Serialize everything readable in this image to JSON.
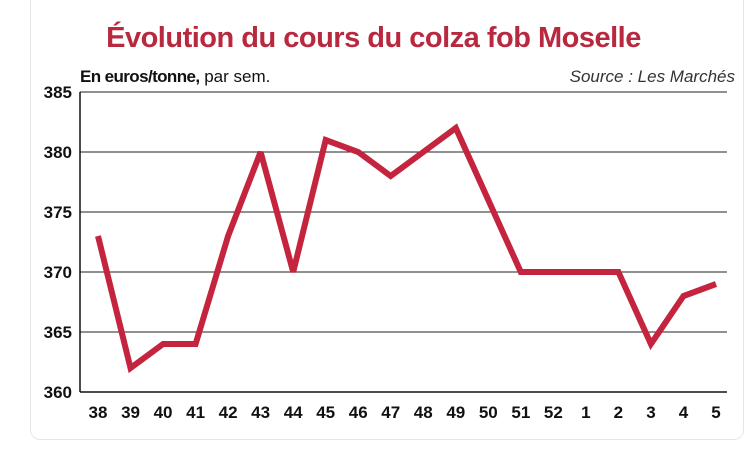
{
  "chart_data": {
    "type": "line",
    "title": "Évolution du cours du colza fob Moselle",
    "ylabel_bold": "En euros/tonne,",
    "ylabel_rest": " par sem.",
    "source": "Source : Les Marchés",
    "categories": [
      "38",
      "39",
      "40",
      "41",
      "42",
      "43",
      "44",
      "45",
      "46",
      "47",
      "48",
      "49",
      "50",
      "51",
      "52",
      "1",
      "2",
      "3",
      "4",
      "5"
    ],
    "series": [
      {
        "name": "",
        "values": [
          373,
          362,
          364,
          364,
          373,
          380,
          370,
          381,
          380,
          378,
          380,
          382,
          376,
          370,
          370,
          370,
          370,
          364,
          368,
          369
        ]
      }
    ],
    "yticks": [
      360,
      365,
      370,
      375,
      380,
      385
    ],
    "ylim": [
      360,
      385
    ],
    "grid": true,
    "line_color": "#c4243d"
  }
}
